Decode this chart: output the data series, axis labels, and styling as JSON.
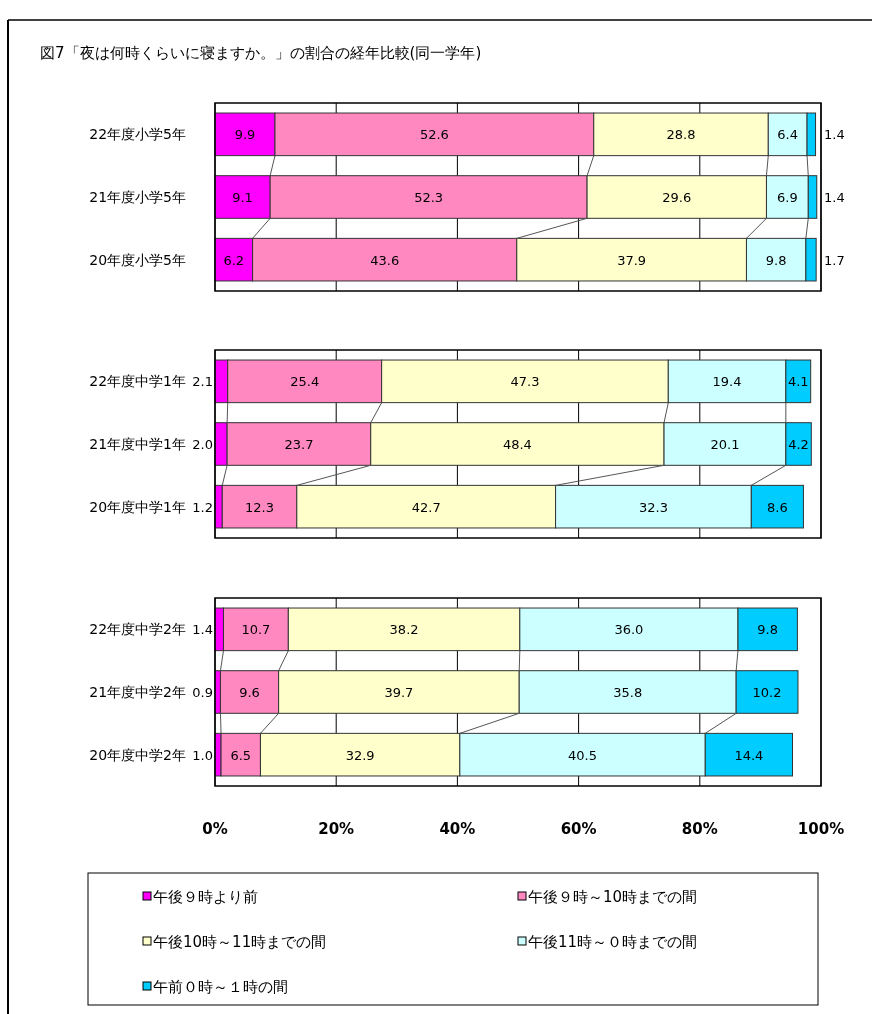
{
  "chart_data": [
    {
      "type": "bar",
      "orientation": "horizontal",
      "stacked": true,
      "title": "図7「夜は何時くらいに寝ますか。」の割合の経年比較(同一学年)",
      "categories": [
        "22年度小学5年",
        "21年度小学5年",
        "20年度小学5年"
      ],
      "xlim": [
        0,
        100
      ],
      "xticks": [
        0,
        20,
        40,
        60,
        80,
        100
      ],
      "grid": "x",
      "tick_labels": "y",
      "series": [
        {
          "color": "#ff00ff",
          "values": [
            9.9,
            9.1,
            6.2
          ],
          "value_labels": [
            "9.9",
            "9.1",
            "6.2"
          ]
        },
        {
          "color": "#ff88c0",
          "values": [
            52.6,
            52.3,
            43.6
          ],
          "value_labels": [
            "52.6",
            "52.3",
            "43.6"
          ]
        },
        {
          "color": "#ffffcc",
          "values": [
            28.8,
            29.6,
            37.9
          ],
          "value_labels": [
            "28.8",
            "29.6",
            "37.9"
          ]
        },
        {
          "color": "#ccffff",
          "values": [
            6.4,
            6.9,
            9.8
          ],
          "value_labels": [
            "6.4",
            "6.9",
            "9.8"
          ]
        },
        {
          "color": "#00ccff",
          "values": [
            1.4,
            1.4,
            1.7
          ],
          "value_labels": [
            "1.4",
            "1.4",
            "1.7"
          ]
        }
      ]
    },
    {
      "type": "bar",
      "orientation": "horizontal",
      "stacked": true,
      "categories": [
        "22年度中学1年",
        "21年度中学1年",
        "20年度中学1年"
      ],
      "xlim": [
        0,
        100
      ],
      "xticks": [
        0,
        20,
        40,
        60,
        80,
        100
      ],
      "grid": "x",
      "tick_labels": "y",
      "series": [
        {
          "color": "#ff00ff",
          "values": [
            2.1,
            2.0,
            1.2
          ],
          "value_labels": [
            "2.1",
            "2.0",
            "1.2"
          ]
        },
        {
          "color": "#ff88c0",
          "values": [
            25.4,
            23.7,
            12.3
          ],
          "value_labels": [
            "25.4",
            "23.7",
            "12.3"
          ]
        },
        {
          "color": "#ffffcc",
          "values": [
            47.3,
            48.4,
            42.7
          ],
          "value_labels": [
            "47.3",
            "48.4",
            "42.7"
          ]
        },
        {
          "color": "#ccffff",
          "values": [
            19.4,
            20.1,
            32.3
          ],
          "value_labels": [
            "19.4",
            "20.1",
            "32.3"
          ]
        },
        {
          "color": "#00ccff",
          "values": [
            4.1,
            4.2,
            8.6
          ],
          "value_labels": [
            "4.1",
            "4.2",
            "8.6"
          ]
        }
      ]
    },
    {
      "type": "bar",
      "orientation": "horizontal",
      "stacked": true,
      "categories": [
        "22年度中学2年",
        "21年度中学2年",
        "20年度中学2年"
      ],
      "xlim": [
        0,
        100
      ],
      "xticks": [
        {
          "value": 0,
          "label": "0%"
        },
        {
          "value": 20,
          "label": "20%"
        },
        {
          "value": 40,
          "label": "40%"
        },
        {
          "value": 60,
          "label": "60%"
        },
        {
          "value": 80,
          "label": "80%"
        },
        {
          "value": 100,
          "label": "100%"
        }
      ],
      "grid": "x",
      "legend": "bottom",
      "series": [
        {
          "name": "午後９時より前",
          "color": "#ff00ff",
          "values": [
            1.4,
            0.9,
            1.0
          ],
          "value_labels": [
            "1.4",
            "0.9",
            "1.0"
          ]
        },
        {
          "name": "午後９時～10時までの間",
          "color": "#ff88c0",
          "values": [
            10.7,
            9.6,
            6.5
          ],
          "value_labels": [
            "10.7",
            "9.6",
            "6.5"
          ]
        },
        {
          "name": "午後10時～11時までの間",
          "color": "#ffffcc",
          "values": [
            38.2,
            39.7,
            32.9
          ],
          "value_labels": [
            "38.2",
            "39.7",
            "32.9"
          ]
        },
        {
          "name": "午後11時～０時までの間",
          "color": "#ccffff",
          "values": [
            36.0,
            35.8,
            40.5
          ],
          "value_labels": [
            "36.0",
            "35.8",
            "40.5"
          ]
        },
        {
          "name": "午前０時～１時の間",
          "color": "#00ccff",
          "values": [
            9.8,
            10.2,
            14.4
          ],
          "value_labels": [
            "9.8",
            "10.2",
            "14.4"
          ]
        }
      ]
    }
  ]
}
